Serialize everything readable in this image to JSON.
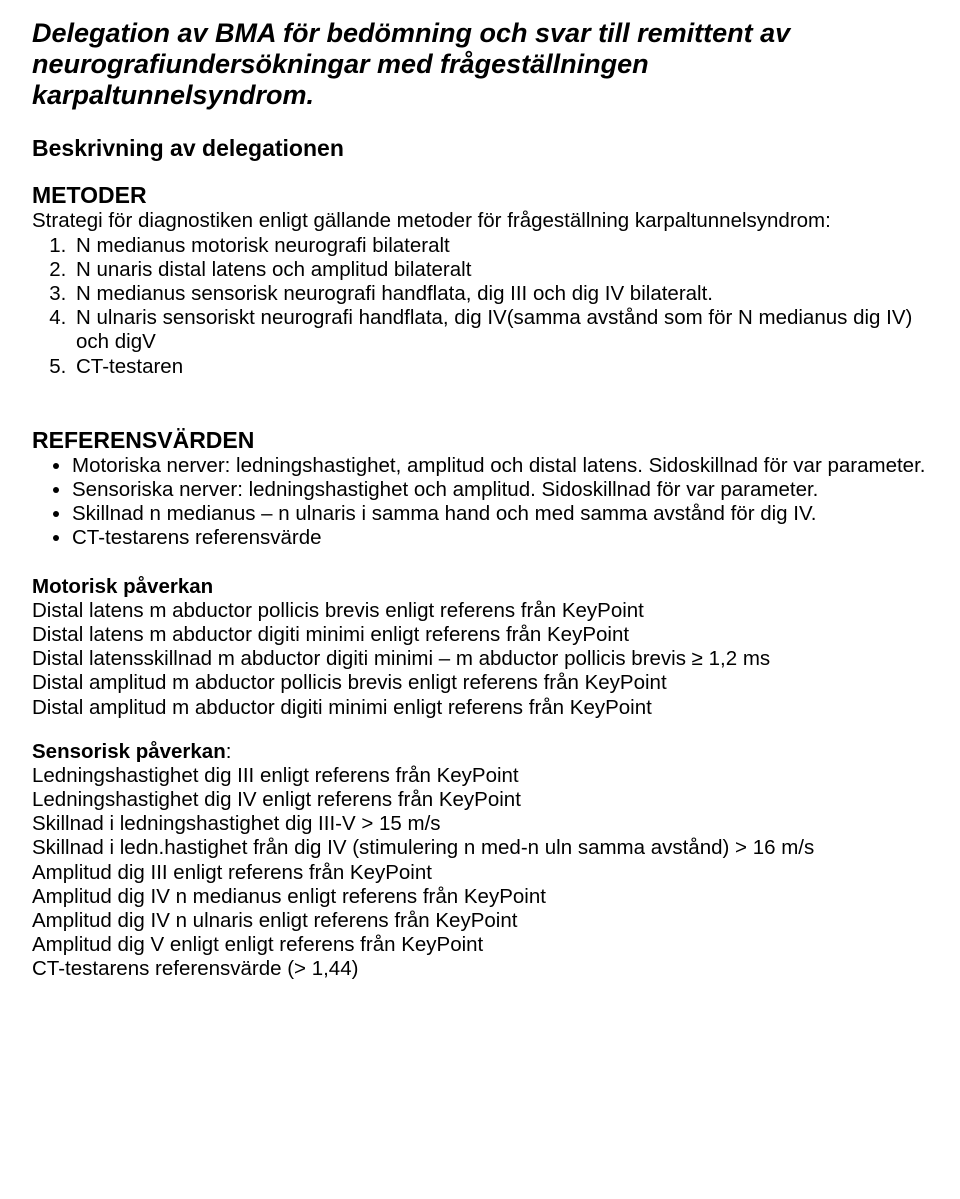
{
  "title_lines": {
    "l1": "Delegation av BMA för bedömning och svar till remittent av",
    "l2": "neurografiundersökningar med frågeställningen",
    "l3": "karpaltunnelsyndrom."
  },
  "subtitle": "Beskrivning av delegationen",
  "metoder": {
    "heading": "METODER",
    "intro": "Strategi för diagnostiken enligt gällande metoder för frågeställning karpaltunnelsyndrom:",
    "items": [
      "N medianus motorisk neurografi bilateralt",
      "N unaris distal latens och amplitud bilateralt",
      "N medianus sensorisk neurografi handflata, dig III och dig IV bilateralt.",
      "N ulnaris sensoriskt neurografi handflata, dig IV(samma avstånd som för N medianus dig IV) och digV",
      "CT-testaren"
    ]
  },
  "ref": {
    "heading": "REFERENSVÄRDEN",
    "bullets": [
      "Motoriska nerver: ledningshastighet, amplitud och distal latens. Sidoskillnad för var parameter.",
      "Sensoriska nerver: ledningshastighet och amplitud. Sidoskillnad för var parameter.",
      "Skillnad n medianus – n ulnaris i samma hand och med samma avstånd för dig IV.",
      "CT-testarens referensvärde"
    ]
  },
  "motorisk": {
    "heading": "Motorisk påverkan",
    "lines": [
      "Distal latens m abductor pollicis brevis enligt referens från KeyPoint",
      "Distal latens m abductor  digiti minimi enligt referens från KeyPoint",
      "Distal latensskillnad m abductor  digiti minimi  – m abductor pollicis brevis ≥ 1,2 ms",
      "Distal amplitud  m abductor pollicis brevis enligt referens från KeyPoint",
      "Distal amplitud m abductor  digiti minimi enligt referens från KeyPoint"
    ]
  },
  "sensorisk": {
    "heading": "Sensorisk påverkan",
    "colon": ":",
    "lines": [
      "Ledningshastighet dig III enligt referens från KeyPoint",
      "Ledningshastighet dig IV enligt referens från KeyPoint",
      "Skillnad i ledningshastighet dig III-V > 15 m/s",
      "Skillnad i ledn.hastighet från dig IV (stimulering n med-n uln samma avstånd) > 16 m/s",
      "Amplitud dig III enligt referens från KeyPoint",
      "Amplitud dig IV n medianus enligt referens från KeyPoint",
      "Amplitud dig IV n ulnaris enligt referens från KeyPoint",
      "Amplitud dig V enligt enligt referens från KeyPoint",
      "CT-testarens referensvärde (> 1,44)"
    ]
  }
}
